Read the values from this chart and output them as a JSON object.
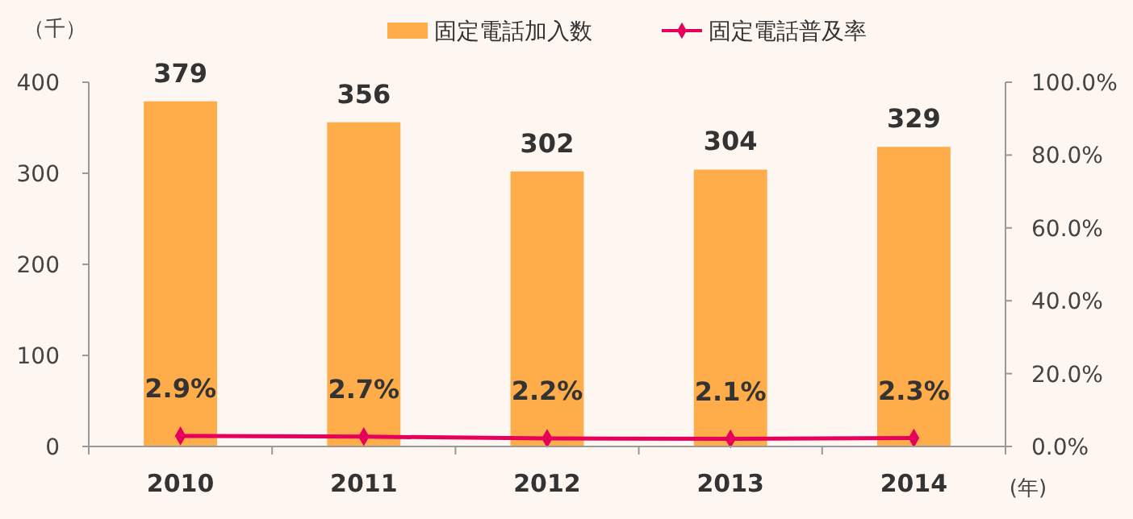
{
  "chart_data": {
    "type": "bar",
    "ylabel": "（千）",
    "xlabel": "(年)",
    "categories": [
      "2010",
      "2011",
      "2012",
      "2013",
      "2014"
    ],
    "series": [
      {
        "name": "固定電話加入数",
        "color": "#ffad4a",
        "values": [
          379,
          356,
          302,
          304,
          329
        ],
        "value_labels": [
          "379",
          "356",
          "302",
          "304",
          "329"
        ]
      },
      {
        "name": "固定電話普及率",
        "type": "line",
        "axis": "y2",
        "color": "#e6005c",
        "marker": "diamond",
        "values": [
          2.9,
          2.7,
          2.2,
          2.1,
          2.3
        ],
        "value_labels": [
          "2.9%",
          "2.7%",
          "2.2%",
          "2.1%",
          "2.3%"
        ]
      }
    ],
    "ylim": [
      0,
      400
    ],
    "yticks": [
      0,
      100,
      200,
      300,
      400
    ],
    "y2lim": [
      0,
      100
    ],
    "y2ticks": [
      {
        "value": 0,
        "label": "0.0%"
      },
      {
        "value": 20,
        "label": "20.0%"
      },
      {
        "value": 40,
        "label": "40.0%"
      },
      {
        "value": 60,
        "label": "60.0%"
      },
      {
        "value": 80,
        "label": "80.0%"
      },
      {
        "value": 100,
        "label": "100.0%"
      }
    ],
    "legend": "top",
    "grid": false
  }
}
